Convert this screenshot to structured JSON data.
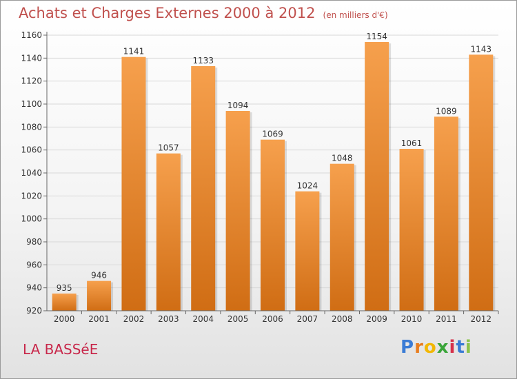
{
  "title": "Achats et Charges Externes 2000 à 2012",
  "unit": "(en milliers d'€)",
  "commune": "LA BASSéE",
  "logo": {
    "text": "Proxiti",
    "colors": [
      "#3a7bd5",
      "#e87d1e",
      "#f2b705",
      "#3aa53a",
      "#d6304a",
      "#3a7bd5",
      "#8bc34a"
    ]
  },
  "colors": {
    "title": "#c0504d",
    "bar_top": "#f6a04d",
    "bar_bottom": "#d06d14",
    "commune": "#c8274a"
  },
  "chart_data": {
    "type": "bar",
    "categories": [
      "2000",
      "2001",
      "2002",
      "2003",
      "2004",
      "2005",
      "2006",
      "2007",
      "2008",
      "2009",
      "2010",
      "2011",
      "2012"
    ],
    "values": [
      935,
      946,
      1141,
      1057,
      1133,
      1094,
      1069,
      1024,
      1048,
      1154,
      1061,
      1089,
      1143
    ],
    "ylim": [
      920,
      1160
    ],
    "yticks": [
      920,
      940,
      960,
      980,
      1000,
      1020,
      1040,
      1060,
      1080,
      1100,
      1120,
      1140,
      1160
    ],
    "grid": true,
    "title": "Achats et Charges Externes 2000 à 2012",
    "xlabel": "",
    "ylabel": ""
  }
}
